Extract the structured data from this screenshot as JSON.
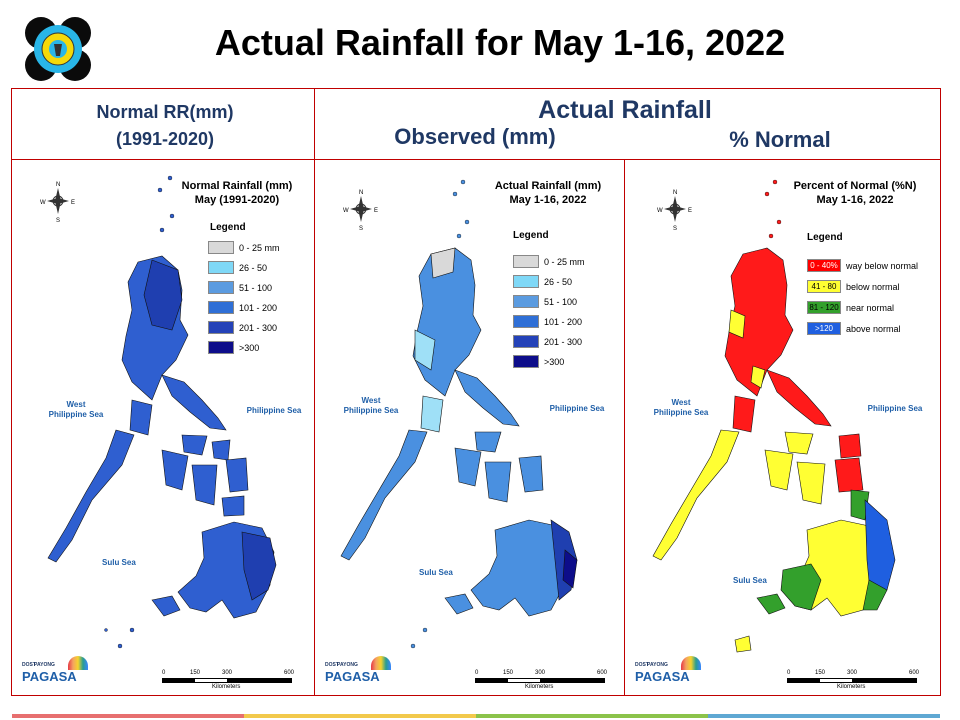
{
  "title": "Actual Rainfall for May 1-16, 2022",
  "headers": {
    "normal_line1": "Normal RR(mm)",
    "normal_line2": "(1991-2020)",
    "actual": "Actual Rainfall",
    "observed": "Observed (mm)",
    "percent": "% Normal"
  },
  "panels": [
    {
      "title_line1": "Normal Rainfall (mm)",
      "title_line2": "May (1991-2020)",
      "legend_title": "Legend",
      "legend": [
        {
          "label": "0 - 25 mm",
          "color": "#d9d9d9"
        },
        {
          "label": "26 - 50",
          "color": "#7fd8f7"
        },
        {
          "label": "51 - 100",
          "color": "#5b9be0"
        },
        {
          "label": "101 - 200",
          "color": "#2f6fd6"
        },
        {
          "label": "201 - 300",
          "color": "#2442b8"
        },
        {
          "label": ">300",
          "color": "#0d0d8a"
        }
      ],
      "seas": {
        "west_line1": "West",
        "west_line2": "Philippine Sea",
        "east": "Philippine Sea",
        "sulu": "Sulu Sea"
      }
    },
    {
      "title_line1": "Actual Rainfall (mm)",
      "title_line2": "May 1-16, 2022",
      "legend_title": "Legend",
      "legend": [
        {
          "label": "0 - 25 mm",
          "color": "#d9d9d9"
        },
        {
          "label": "26 - 50",
          "color": "#7fd8f7"
        },
        {
          "label": "51 - 100",
          "color": "#5b9be0"
        },
        {
          "label": "101 - 200",
          "color": "#2f6fd6"
        },
        {
          "label": "201 - 300",
          "color": "#2442b8"
        },
        {
          "label": ">300",
          "color": "#0d0d8a"
        }
      ],
      "seas": {
        "west_line1": "West",
        "west_line2": "Philippine Sea",
        "east": "Philippine Sea",
        "sulu": "Sulu Sea"
      }
    },
    {
      "title_line1": "Percent of Normal (%N)",
      "title_line2": "May 1-16, 2022",
      "legend_title": "Legend",
      "legend": [
        {
          "swatch": "0 - 40%",
          "label": "way below normal",
          "color": "#ff0000",
          "text_color": "#ffffff"
        },
        {
          "swatch": "41 - 80",
          "label": "below normal",
          "color": "#ffff33",
          "text_color": "#000000"
        },
        {
          "swatch": "81 - 120",
          "label": "near normal",
          "color": "#33a02c",
          "text_color": "#000000"
        },
        {
          "swatch": ">120",
          "label": "above normal",
          "color": "#1f5fe0",
          "text_color": "#ffffff"
        }
      ],
      "seas": {
        "west_line1": "West",
        "west_line2": "Philippine Sea",
        "east": "Philippine Sea",
        "sulu": "Sulu Sea"
      }
    }
  ],
  "scale": {
    "ticks": [
      "0",
      "150",
      "300",
      "600"
    ],
    "unit": "Kilometers"
  },
  "branding": {
    "dost": "DOST",
    "payong": "PAYONG",
    "pagasa": "PAGASA"
  },
  "map_colors": {
    "normal_fill": "#2f5fd0",
    "normal_dark": "#1f3fb0",
    "actual_fill": "#4a90e0",
    "actual_light": "#9fe0f7",
    "pct_red": "#ff1a1a",
    "pct_yellow": "#ffff33",
    "pct_green": "#33a02c",
    "pct_blue": "#1f5fe0"
  },
  "accent_colors": {
    "frame": "#c00000",
    "header_text": "#1f3864"
  }
}
